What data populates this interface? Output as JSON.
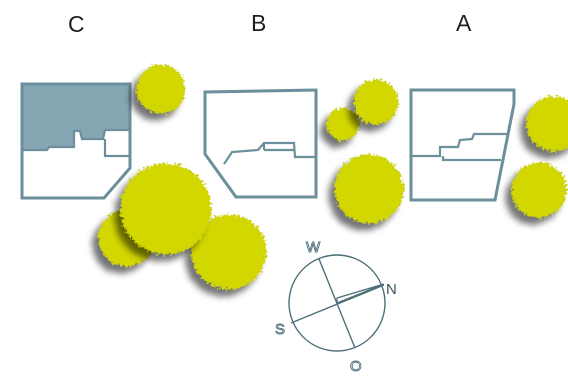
{
  "plots": [
    {
      "id": "C",
      "label": "C"
    },
    {
      "id": "B",
      "label": "B"
    },
    {
      "id": "A",
      "label": "A"
    }
  ],
  "compass": {
    "west": "W",
    "south": "S",
    "north": "N",
    "east": "O"
  },
  "colors": {
    "outline": "#6b8f9b",
    "shaded_area": "#85a6b2",
    "tree_fill": "#d2d700",
    "tree_edge": "#c8cc10",
    "shadow": "#8a8a8a"
  }
}
